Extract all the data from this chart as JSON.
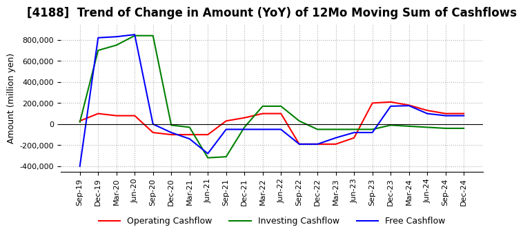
{
  "title": "[4188]  Trend of Change in Amount (YoY) of 12Mo Moving Sum of Cashflows",
  "ylabel": "Amount (million yen)",
  "ylim": [
    -450000,
    950000
  ],
  "yticks": [
    -400000,
    -200000,
    0,
    200000,
    400000,
    600000,
    800000
  ],
  "x_labels": [
    "Sep-19",
    "Dec-19",
    "Mar-20",
    "Jun-20",
    "Sep-20",
    "Dec-20",
    "Mar-21",
    "Jun-21",
    "Sep-21",
    "Dec-21",
    "Mar-22",
    "Jun-22",
    "Sep-22",
    "Dec-22",
    "Mar-23",
    "Jun-23",
    "Sep-23",
    "Dec-23",
    "Mar-24",
    "Jun-24",
    "Sep-24",
    "Dec-24"
  ],
  "operating": [
    30000,
    100000,
    80000,
    80000,
    -80000,
    -100000,
    -100000,
    -100000,
    30000,
    60000,
    100000,
    100000,
    -190000,
    -190000,
    -190000,
    -130000,
    200000,
    210000,
    180000,
    130000,
    100000,
    100000
  ],
  "investing": [
    20000,
    700000,
    750000,
    840000,
    840000,
    -10000,
    -30000,
    -320000,
    -310000,
    -30000,
    170000,
    170000,
    30000,
    -50000,
    -50000,
    -50000,
    -50000,
    -10000,
    -20000,
    -30000,
    -40000,
    -40000
  ],
  "free": [
    -400000,
    820000,
    830000,
    850000,
    0,
    -80000,
    -140000,
    -280000,
    -50000,
    -50000,
    -50000,
    -50000,
    -190000,
    -190000,
    -130000,
    -80000,
    -80000,
    170000,
    175000,
    100000,
    80000,
    80000
  ],
  "operating_color": "#ff0000",
  "investing_color": "#008000",
  "free_color": "#0000ff",
  "background_color": "#ffffff",
  "grid_color": "#b0b0b0",
  "title_fontsize": 12,
  "label_fontsize": 9,
  "tick_fontsize": 8
}
